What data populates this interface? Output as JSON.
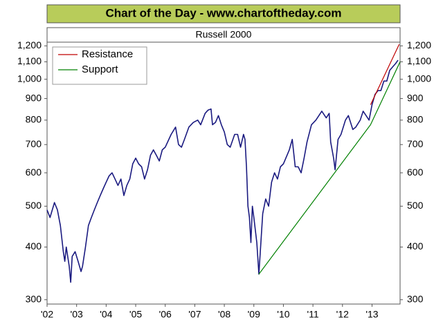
{
  "chart_data": {
    "type": "line",
    "title": "Chart of the Day - www.chartoftheday.com",
    "subtitle": "Russell 2000",
    "log_scale": true,
    "xlim": [
      2002,
      2013.95
    ],
    "xticks": [
      {
        "value": 2002,
        "label": "'02"
      },
      {
        "value": 2003,
        "label": "'03"
      },
      {
        "value": 2004,
        "label": "'04"
      },
      {
        "value": 2005,
        "label": "'05"
      },
      {
        "value": 2006,
        "label": "'06"
      },
      {
        "value": 2007,
        "label": "'07"
      },
      {
        "value": 2008,
        "label": "'08"
      },
      {
        "value": 2009,
        "label": "'09"
      },
      {
        "value": 2010,
        "label": "'10"
      },
      {
        "value": 2011,
        "label": "'11"
      },
      {
        "value": 2012,
        "label": "'12"
      },
      {
        "value": 2013,
        "label": "'13"
      }
    ],
    "ylim": [
      293,
      1220
    ],
    "yticks": [
      300,
      400,
      500,
      600,
      700,
      800,
      900,
      {
        "value": 1000,
        "label": "1,000"
      },
      {
        "value": 1100,
        "label": "1,100"
      },
      {
        "value": 1200,
        "label": "1,200"
      }
    ],
    "legend": "upper left",
    "series": [
      {
        "color": "#1a1a80",
        "x": [
          2002.0,
          2002.1,
          2002.25,
          2002.35,
          2002.45,
          2002.55,
          2002.6,
          2002.65,
          2002.75,
          2002.8,
          2002.85,
          2002.95,
          2003.05,
          2003.15,
          2003.2,
          2003.3,
          2003.4,
          2003.5,
          2003.6,
          2003.7,
          2003.8,
          2003.9,
          2004.0,
          2004.1,
          2004.2,
          2004.3,
          2004.4,
          2004.5,
          2004.6,
          2004.7,
          2004.8,
          2004.9,
          2005.0,
          2005.1,
          2005.2,
          2005.3,
          2005.4,
          2005.5,
          2005.6,
          2005.7,
          2005.8,
          2005.9,
          2006.0,
          2006.2,
          2006.35,
          2006.45,
          2006.55,
          2006.65,
          2006.8,
          2006.95,
          2007.1,
          2007.2,
          2007.35,
          2007.45,
          2007.55,
          2007.6,
          2007.7,
          2007.8,
          2007.9,
          2008.0,
          2008.1,
          2008.2,
          2008.35,
          2008.45,
          2008.55,
          2008.65,
          2008.7,
          2008.75,
          2008.8,
          2008.85,
          2008.9,
          2008.95,
          2009.0,
          2009.1,
          2009.17,
          2009.3,
          2009.4,
          2009.5,
          2009.6,
          2009.7,
          2009.8,
          2009.9,
          2010.0,
          2010.2,
          2010.3,
          2010.4,
          2010.5,
          2010.6,
          2010.7,
          2010.8,
          2010.95,
          2011.1,
          2011.3,
          2011.45,
          2011.55,
          2011.6,
          2011.7,
          2011.75,
          2011.85,
          2011.95,
          2012.1,
          2012.2,
          2012.35,
          2012.45,
          2012.6,
          2012.7,
          2012.8,
          2012.9,
          2013.0,
          2013.1,
          2013.2,
          2013.3,
          2013.4,
          2013.5,
          2013.6,
          2013.7,
          2013.8,
          2013.88
        ],
        "values": [
          490,
          470,
          510,
          490,
          450,
          390,
          370,
          400,
          360,
          330,
          380,
          390,
          370,
          350,
          360,
          400,
          450,
          470,
          490,
          510,
          530,
          550,
          570,
          590,
          600,
          580,
          560,
          580,
          530,
          560,
          580,
          630,
          650,
          630,
          620,
          580,
          610,
          660,
          680,
          660,
          640,
          680,
          690,
          740,
          770,
          700,
          690,
          720,
          770,
          790,
          800,
          780,
          830,
          845,
          850,
          780,
          790,
          820,
          780,
          750,
          700,
          690,
          740,
          740,
          690,
          740,
          720,
          620,
          500,
          470,
          410,
          500,
          470,
          410,
          345,
          480,
          520,
          500,
          570,
          600,
          580,
          620,
          630,
          680,
          720,
          620,
          620,
          600,
          650,
          710,
          780,
          800,
          840,
          810,
          830,
          710,
          650,
          610,
          720,
          740,
          800,
          820,
          760,
          770,
          800,
          840,
          820,
          800,
          870,
          920,
          940,
          940,
          990,
          990,
          1050,
          1070,
          1090,
          1110
        ]
      },
      {
        "name": "Resistance",
        "color": "#c00000",
        "x": [
          2012.95,
          2013.92
        ],
        "values": [
          870,
          1210
        ]
      },
      {
        "name": "Support",
        "color": "#008000",
        "x": [
          2009.17,
          2012.95,
          2013.95
        ],
        "values": [
          345,
          780,
          1100
        ]
      }
    ]
  }
}
